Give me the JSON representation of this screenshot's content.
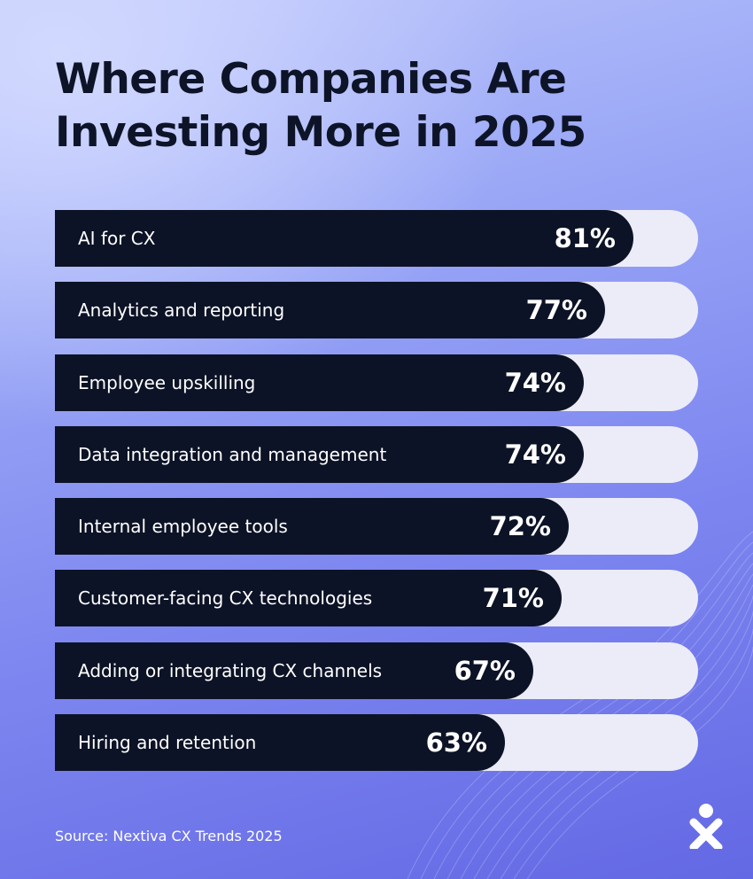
{
  "title_lines": [
    "Where Companies Are",
    "Investing More in 2025"
  ],
  "source": "Source: Nextiva CX Trends 2025",
  "logo": "nextiva-logo-icon",
  "colors": {
    "bar": "#0d1326",
    "track": "#ececf8",
    "title": "#0e1428",
    "background": "#7e87f0"
  },
  "chart_data": {
    "type": "bar",
    "orientation": "horizontal",
    "title": "Where Companies Are Investing More in 2025",
    "xlabel": "",
    "ylabel": "",
    "xlim": [
      0,
      100
    ],
    "grid": false,
    "categories": [
      "AI for CX",
      "Analytics and reporting",
      "Employee upskilling",
      "Data integration and management",
      "Internal employee tools",
      "Customer-facing CX technologies",
      "Adding or integrating CX channels",
      "Hiring and retention"
    ],
    "values": [
      81,
      77,
      74,
      74,
      72,
      71,
      67,
      63
    ],
    "value_labels": [
      "81%",
      "77%",
      "74%",
      "74%",
      "72%",
      "71%",
      "67%",
      "63%"
    ]
  }
}
